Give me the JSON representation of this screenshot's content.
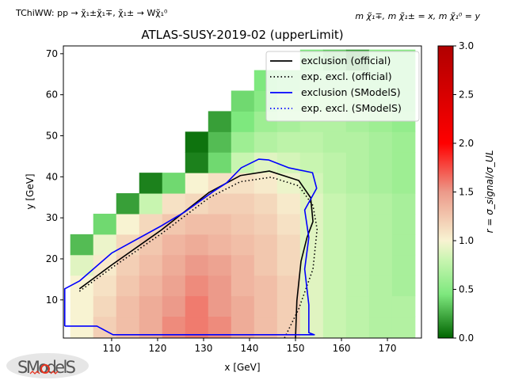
{
  "header": {
    "process_label": "TChiWW: pp → χ̃₁±χ̃₁∓, χ̃₁± → Wχ̃₁⁰",
    "mass_label": "m χ̃₁∓, m χ̃₁± = x, m χ̃₁⁰ = y"
  },
  "logo": {
    "text": "SModelS"
  },
  "chart_data": {
    "type": "heatmap",
    "title": "ATLAS-SUSY-2019-02 (upperLimit)",
    "xlabel": "x [GeV]",
    "ylabel": "y [GeV]",
    "xlim": [
      99.5,
      177.4
    ],
    "ylim": [
      0.7,
      71.9
    ],
    "xticks": [
      "110",
      "120",
      "130",
      "140",
      "150",
      "160",
      "170"
    ],
    "yticks": [
      "10",
      "20",
      "30",
      "40",
      "50",
      "60",
      "70"
    ],
    "colorbar": {
      "label": "r = σ_signal/σ_UL",
      "range": [
        0,
        3
      ],
      "ticks": [
        "0.0",
        "0.5",
        "1.0",
        "1.5",
        "2.0",
        "2.5",
        "3.0"
      ],
      "stops": [
        [
          0,
          "#006400"
        ],
        [
          0.45,
          "#7ee87e"
        ],
        [
          0.8,
          "#c8f5b0"
        ],
        [
          1.0,
          "#f8f3d2"
        ],
        [
          1.5,
          "#ec9a8a"
        ],
        [
          2.0,
          "#ff0000"
        ],
        [
          3.0,
          "#b00000"
        ]
      ]
    },
    "grid": {
      "x_start": 101,
      "x_step": 5,
      "y_start": 1,
      "y_step": 5,
      "rows": [
        [
          1.0,
          1.2,
          1.3,
          1.4,
          1.55,
          1.6,
          1.55,
          1.4,
          1.3,
          1.2,
          0.9,
          0.8,
          0.75,
          0.7,
          0.7
        ],
        [
          1.0,
          1.15,
          1.3,
          1.4,
          1.5,
          1.6,
          1.5,
          1.4,
          1.3,
          1.2,
          0.9,
          0.8,
          0.75,
          0.7,
          0.7
        ],
        [
          1.0,
          1.1,
          1.25,
          1.35,
          1.45,
          1.55,
          1.5,
          1.35,
          1.3,
          1.2,
          0.9,
          0.8,
          0.75,
          0.7,
          0.65
        ],
        [
          0.9,
          1.05,
          1.2,
          1.3,
          1.4,
          1.5,
          1.45,
          1.35,
          1.25,
          1.15,
          0.9,
          0.8,
          0.75,
          0.7,
          0.65
        ],
        [
          0.3,
          0.95,
          1.15,
          1.25,
          1.35,
          1.4,
          1.35,
          1.3,
          1.25,
          1.15,
          0.9,
          0.8,
          0.75,
          0.7,
          0.65
        ],
        [
          null,
          0.4,
          1.0,
          1.15,
          1.25,
          1.3,
          1.3,
          1.25,
          1.2,
          1.1,
          0.9,
          0.8,
          0.75,
          0.7,
          0.65
        ],
        [
          null,
          null,
          0.2,
          0.8,
          1.1,
          1.15,
          1.2,
          1.2,
          1.15,
          1.05,
          0.9,
          0.8,
          0.75,
          0.7,
          0.65
        ],
        [
          null,
          null,
          null,
          0.1,
          0.4,
          1.0,
          1.1,
          1.1,
          1.05,
          0.95,
          0.85,
          0.75,
          0.7,
          0.65,
          0.6
        ],
        [
          null,
          null,
          null,
          null,
          null,
          0.1,
          0.4,
          0.8,
          0.9,
          0.85,
          0.8,
          0.75,
          0.7,
          0.65,
          0.6
        ],
        [
          null,
          null,
          null,
          null,
          null,
          0.05,
          0.3,
          0.6,
          0.7,
          0.75,
          0.75,
          0.7,
          0.7,
          0.65,
          0.6
        ],
        [
          null,
          null,
          null,
          null,
          null,
          null,
          0.2,
          0.45,
          0.6,
          0.65,
          0.7,
          0.7,
          0.65,
          0.6,
          0.55
        ],
        [
          null,
          null,
          null,
          null,
          null,
          null,
          null,
          0.4,
          0.5,
          0.6,
          0.6,
          0.6,
          0.6,
          0.55,
          0.5
        ],
        [
          null,
          null,
          null,
          null,
          null,
          null,
          null,
          null,
          0.45,
          0.5,
          0.55,
          0.55,
          0.55,
          0.5,
          0.5
        ],
        [
          null,
          null,
          null,
          null,
          null,
          null,
          null,
          null,
          null,
          null,
          0.45,
          0.35,
          0.2,
          0.5,
          0.5
        ]
      ]
    },
    "series": [
      {
        "name": "exclusion (official)",
        "color": "#000000",
        "style": "solid",
        "points": [
          [
            103,
            12.7
          ],
          [
            110,
            18.5
          ],
          [
            120.9,
            27.1
          ],
          [
            131.2,
            36.2
          ],
          [
            138,
            40.3
          ],
          [
            144.3,
            41.4
          ],
          [
            150.7,
            39.1
          ],
          [
            153.3,
            34.9
          ],
          [
            153.8,
            29.1
          ],
          [
            152.5,
            25.2
          ],
          [
            151.2,
            19.4
          ],
          [
            150.3,
            9.8
          ],
          [
            150,
            0.7
          ]
        ]
      },
      {
        "name": "exp. excl. (official)",
        "color": "#000000",
        "style": "dotted",
        "points": [
          [
            103,
            12.1
          ],
          [
            110,
            17.8
          ],
          [
            120.9,
            26.2
          ],
          [
            131.2,
            34.9
          ],
          [
            138,
            38.8
          ],
          [
            144.7,
            39.9
          ],
          [
            150.7,
            37.8
          ],
          [
            153.8,
            33
          ],
          [
            154.7,
            27.2
          ],
          [
            153.8,
            17.5
          ],
          [
            150.7,
            7.8
          ],
          [
            147.6,
            0.7
          ]
        ]
      },
      {
        "name": "exclusion (SModelS)",
        "color": "#0000ff",
        "style": "solid",
        "points": [
          [
            99.8,
            3.6
          ],
          [
            99.8,
            12.7
          ],
          [
            103,
            14.6
          ],
          [
            110,
            21.4
          ],
          [
            120.9,
            28.1
          ],
          [
            126,
            31.5
          ],
          [
            132.1,
            36.4
          ],
          [
            135,
            38.5
          ],
          [
            138.2,
            42.2
          ],
          [
            142,
            44.3
          ],
          [
            144.2,
            44.1
          ],
          [
            148.5,
            42.2
          ],
          [
            153.7,
            41
          ],
          [
            154.6,
            37.2
          ],
          [
            152,
            31.9
          ],
          [
            152.9,
            25.2
          ],
          [
            152,
            17.5
          ],
          [
            152.9,
            8.8
          ],
          [
            152.9,
            2
          ],
          [
            154.1,
            1.5
          ],
          [
            110.3,
            1.5
          ],
          [
            106.8,
            3.6
          ],
          [
            99.8,
            3.6
          ]
        ]
      },
      {
        "name": "exp. excl. (SModelS)",
        "color": "#0000ff",
        "style": "dotted",
        "points": []
      }
    ]
  }
}
